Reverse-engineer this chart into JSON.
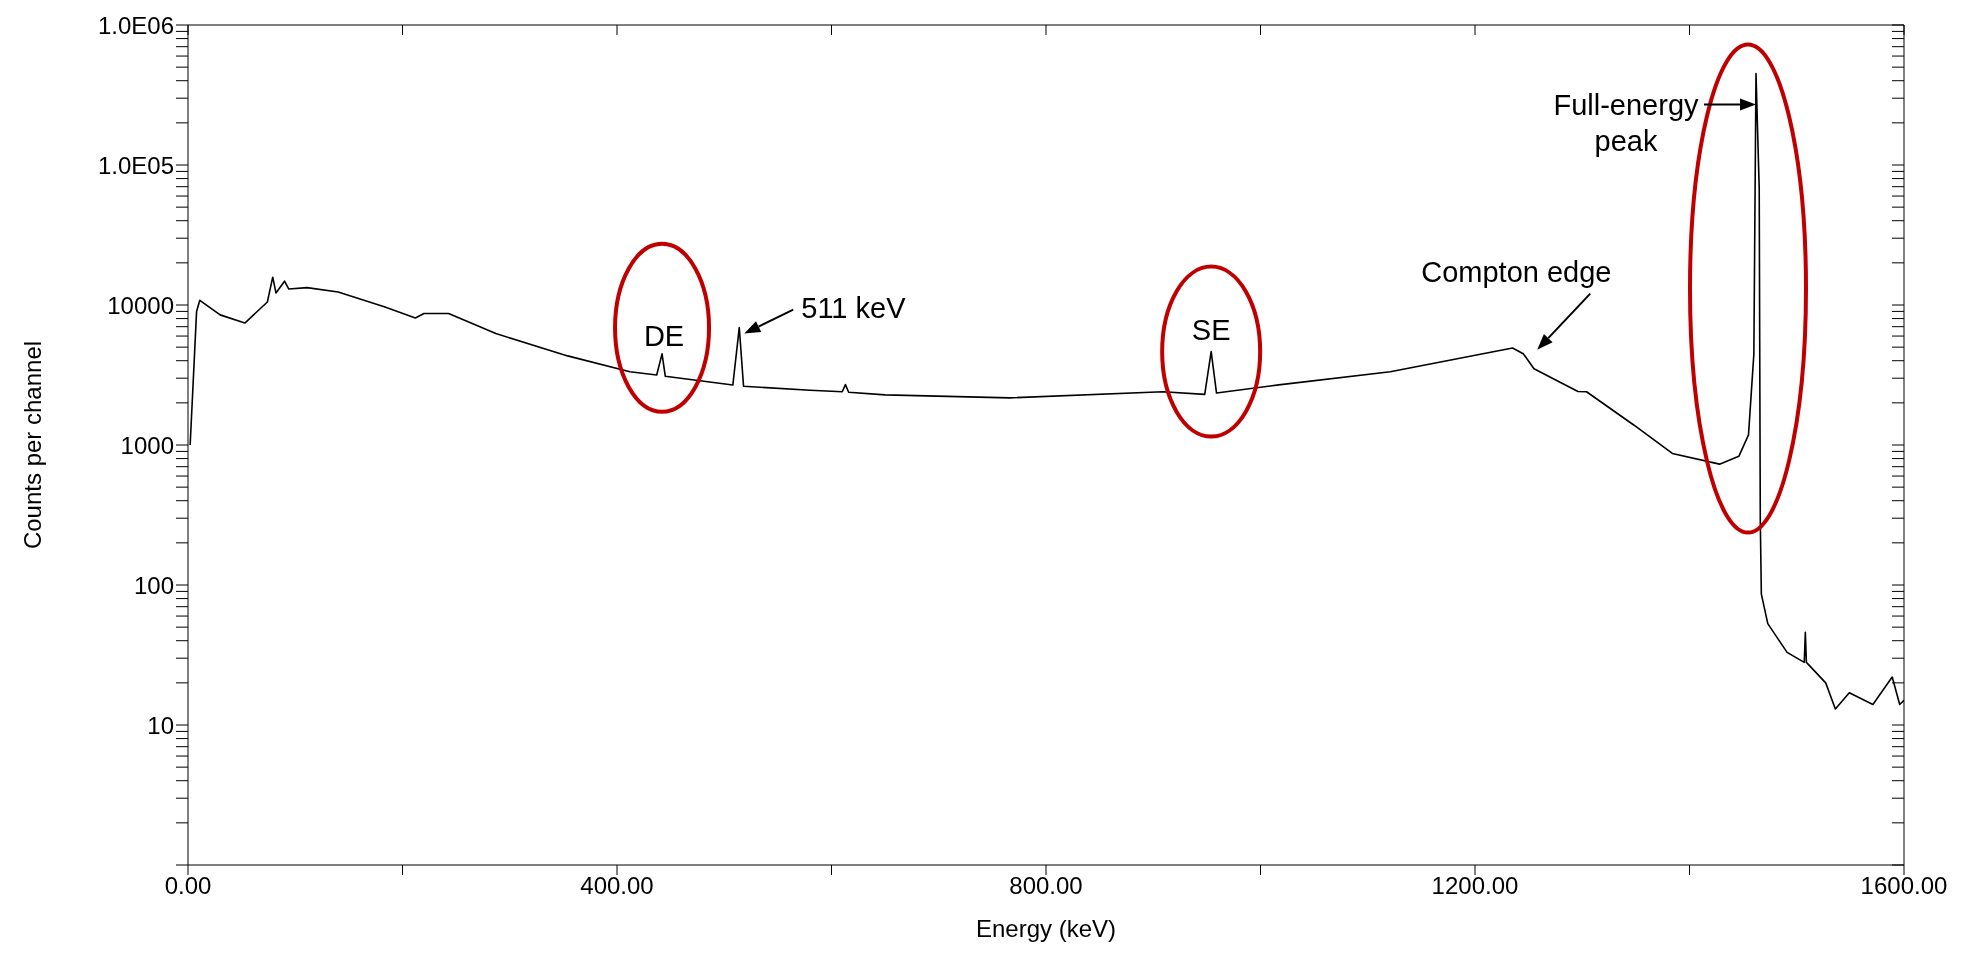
{
  "chart_data": {
    "type": "line",
    "xlabel": "Energy (keV)",
    "ylabel": "Counts per channel",
    "log": "y",
    "marker": "none",
    "line_style": "solid",
    "xlim": [
      0,
      1600
    ],
    "xticks": [
      {
        "value": 0,
        "label": "0.00"
      },
      {
        "value": 200,
        "label": null
      },
      {
        "value": 400,
        "label": "400.00"
      },
      {
        "value": 600,
        "label": null
      },
      {
        "value": 800,
        "label": "800.00"
      },
      {
        "value": 1000,
        "label": null
      },
      {
        "value": 1200,
        "label": "1200.00"
      },
      {
        "value": 1400,
        "label": null
      },
      {
        "value": 1600,
        "label": "1600.00"
      }
    ],
    "ylim": [
      1,
      1000000
    ],
    "yticks": [
      {
        "value": 1,
        "label": null
      },
      {
        "value": 2,
        "label": null
      },
      {
        "value": 3,
        "label": null
      },
      {
        "value": 4,
        "label": null
      },
      {
        "value": 5,
        "label": null
      },
      {
        "value": 6,
        "label": null
      },
      {
        "value": 7,
        "label": null
      },
      {
        "value": 8,
        "label": null
      },
      {
        "value": 9,
        "label": null
      },
      10,
      {
        "value": 20,
        "label": null
      },
      {
        "value": 30,
        "label": null
      },
      {
        "value": 40,
        "label": null
      },
      {
        "value": 50,
        "label": null
      },
      {
        "value": 60,
        "label": null
      },
      {
        "value": 70,
        "label": null
      },
      {
        "value": 80,
        "label": null
      },
      {
        "value": 90,
        "label": null
      },
      100,
      {
        "value": 200,
        "label": null
      },
      {
        "value": 300,
        "label": null
      },
      {
        "value": 400,
        "label": null
      },
      {
        "value": 500,
        "label": null
      },
      {
        "value": 600,
        "label": null
      },
      {
        "value": 700,
        "label": null
      },
      {
        "value": 800,
        "label": null
      },
      {
        "value": 900,
        "label": null
      },
      1000,
      {
        "value": 2000,
        "label": null
      },
      {
        "value": 3000,
        "label": null
      },
      {
        "value": 4000,
        "label": null
      },
      {
        "value": 5000,
        "label": null
      },
      {
        "value": 6000,
        "label": null
      },
      {
        "value": 7000,
        "label": null
      },
      {
        "value": 8000,
        "label": null
      },
      {
        "value": 9000,
        "label": null
      },
      10000,
      {
        "value": 20000,
        "label": null
      },
      {
        "value": 30000,
        "label": null
      },
      {
        "value": 40000,
        "label": null
      },
      {
        "value": 50000,
        "label": null
      },
      {
        "value": 60000,
        "label": null
      },
      {
        "value": 70000,
        "label": null
      },
      {
        "value": 80000,
        "label": null
      },
      {
        "value": 90000,
        "label": null
      },
      {
        "value": 100000,
        "label": "1.0E05"
      },
      {
        "value": 200000,
        "label": null
      },
      {
        "value": 300000,
        "label": null
      },
      {
        "value": 400000,
        "label": null
      },
      {
        "value": 500000,
        "label": null
      },
      {
        "value": 600000,
        "label": null
      },
      {
        "value": 700000,
        "label": null
      },
      {
        "value": 800000,
        "label": null
      },
      {
        "value": 900000,
        "label": null
      },
      {
        "value": 1000000,
        "label": "1.0E06"
      }
    ],
    "x": [
      2,
      5,
      8,
      11,
      30,
      53,
      74,
      79,
      82,
      90,
      94,
      111,
      140,
      183,
      212,
      220,
      243,
      287,
      354,
      412,
      437,
      442,
      445,
      508,
      514,
      518,
      580,
      610,
      613,
      616,
      650,
      766,
      909,
      948,
      954,
      959,
      1017,
      1121,
      1235,
      1245,
      1255,
      1296,
      1304,
      1348,
      1384,
      1428,
      1446,
      1455,
      1460,
      1462,
      1465,
      1466,
      1467,
      1473,
      1491,
      1507,
      1508,
      1509,
      1527,
      1536,
      1549,
      1571,
      1589,
      1596,
      1600
    ],
    "series": [
      {
        "color": "#000000",
        "values": [
          1000,
          3000,
          9000,
          10800,
          8500,
          7430,
          10500,
          15800,
          12200,
          14800,
          13000,
          13300,
          12400,
          9700,
          8080,
          8700,
          8700,
          6250,
          4330,
          3340,
          3160,
          4480,
          3100,
          2680,
          6900,
          2630,
          2460,
          2400,
          2700,
          2380,
          2280,
          2170,
          2400,
          2300,
          4650,
          2350,
          2690,
          3340,
          4930,
          4490,
          3500,
          2410,
          2400,
          1390,
          870,
          730,
          830,
          1180,
          4460,
          450000,
          68000,
          290,
          86,
          53,
          33,
          28,
          46,
          28,
          20,
          13,
          17,
          14,
          22,
          14,
          15
        ]
      }
    ],
    "annotations": [
      {
        "text": "DE",
        "x": 442,
        "y": 4480
      },
      {
        "text": "511 keV",
        "x": 514,
        "y": 6900
      },
      {
        "text": "SE",
        "x": 954,
        "y": 4650
      },
      {
        "text": "Compton edge",
        "x": 1245,
        "y": 4490
      },
      {
        "text": "Full-energy peak",
        "x": 1462,
        "y": 270000
      }
    ]
  }
}
